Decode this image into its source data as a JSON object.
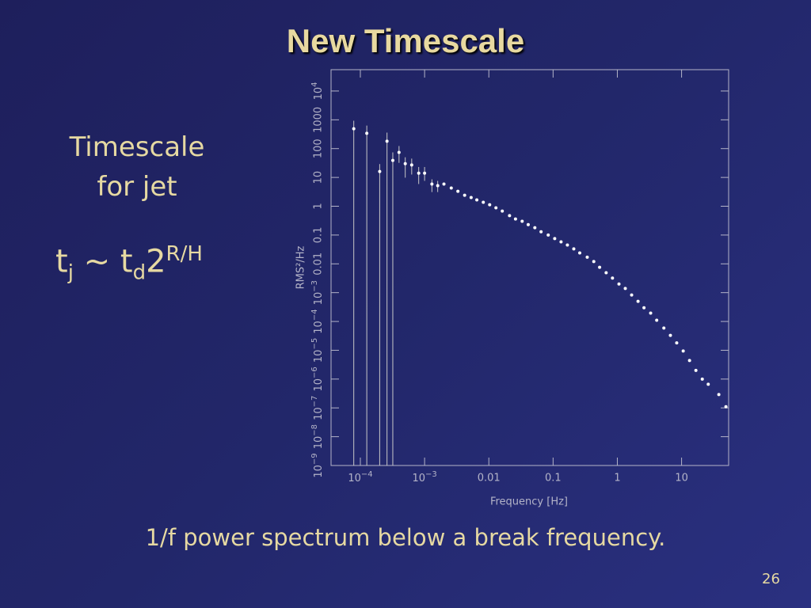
{
  "slide": {
    "title": "New Timescale",
    "side_lines": [
      "Timescale",
      "for jet"
    ],
    "formula": {
      "t1": "t",
      "sub1": "j",
      "mid": " ~ t",
      "sub2": "d",
      "base": "2",
      "sup": "R/H"
    },
    "caption": "1/f power spectrum below a break frequency.",
    "page_number": "26"
  },
  "chart_data": {
    "type": "scatter",
    "x_label": "Frequency [Hz]",
    "y_label": "RMS²/Hz",
    "xscale": "log",
    "yscale": "log",
    "xlim": [
      3.5e-05,
      54
    ],
    "ylim": [
      1e-09,
      55000
    ],
    "xticks": [
      {
        "value": 0.0001,
        "label": "10",
        "exponent": "−4"
      },
      {
        "value": 0.001,
        "label": "10",
        "exponent": "−3"
      },
      0.01,
      0.1,
      1,
      10
    ],
    "yticks": [
      {
        "value": 1e-09,
        "label": "10",
        "exponent": "−9"
      },
      {
        "value": 1e-08,
        "label": "10",
        "exponent": "−8"
      },
      {
        "value": 1e-07,
        "label": "10",
        "exponent": "−7"
      },
      {
        "value": 1e-06,
        "label": "10",
        "exponent": "−6"
      },
      {
        "value": 1e-05,
        "label": "10",
        "exponent": "−5"
      },
      {
        "value": 0.0001,
        "label": "10",
        "exponent": "−4"
      },
      {
        "value": 0.001,
        "label": "10",
        "exponent": "−3"
      },
      0.01,
      0.1,
      1,
      10,
      100,
      1000,
      {
        "value": 10000,
        "label": "10",
        "exponent": "4"
      }
    ],
    "color": "#ffffff",
    "errorbar_color": "#c8c8c8",
    "axis_color": "#b4b4c8",
    "x": [
      7.9e-05,
      0.000126,
      0.0002,
      0.00026,
      0.00032,
      0.0004,
      0.0005,
      0.00063,
      0.00081,
      0.001,
      0.0013,
      0.0016,
      0.002,
      0.0026,
      0.0033,
      0.0042,
      0.0053,
      0.0065,
      0.0082,
      0.0103,
      0.0129,
      0.0162,
      0.021,
      0.026,
      0.033,
      0.041,
      0.052,
      0.065,
      0.084,
      0.106,
      0.133,
      0.167,
      0.21,
      0.26,
      0.34,
      0.43,
      0.53,
      0.67,
      0.84,
      1.06,
      1.33,
      1.67,
      2.1,
      2.6,
      3.3,
      4.1,
      5.3,
      6.7,
      8.4,
      10.6,
      13.3,
      16.7,
      21,
      26,
      38,
      49
    ],
    "values": [
      490,
      340,
      16,
      180,
      39,
      74,
      30,
      27,
      14,
      14,
      5.9,
      5.2,
      5.9,
      4.3,
      3.3,
      2.4,
      2.0,
      1.66,
      1.37,
      1.13,
      0.88,
      0.68,
      0.47,
      0.36,
      0.3,
      0.23,
      0.18,
      0.13,
      0.1,
      0.075,
      0.058,
      0.045,
      0.033,
      0.024,
      0.017,
      0.012,
      0.0076,
      0.0049,
      0.0032,
      0.002,
      0.0014,
      0.00083,
      0.0005,
      0.0003,
      0.000195,
      0.00011,
      5.9e-05,
      3.3e-05,
      1.8e-05,
      9.4e-06,
      4.4e-06,
      2e-06,
      1e-06,
      6.6e-07,
      2.9e-07,
      1.1e-07
    ],
    "y_low": [
      0,
      0,
      0,
      0,
      0,
      32,
      9.8,
      12.6,
      5.9,
      7.6,
      3.1,
      3.1,
      null,
      null,
      null,
      null,
      null,
      null,
      null,
      null,
      null,
      null,
      null,
      null,
      null,
      null,
      null,
      null,
      null,
      null,
      null,
      null,
      null,
      null,
      null,
      null,
      null,
      null,
      null,
      null,
      null,
      null,
      null,
      null,
      null,
      null,
      null,
      null,
      null,
      null,
      null,
      null,
      null,
      null,
      null,
      null
    ],
    "y_high": [
      930,
      630,
      29,
      360,
      74,
      123,
      50,
      45,
      23,
      23,
      8.6,
      7.6,
      null,
      null,
      null,
      null,
      null,
      null,
      null,
      null,
      null,
      null,
      null,
      null,
      null,
      null,
      null,
      null,
      null,
      null,
      null,
      null,
      null,
      null,
      null,
      null,
      null,
      null,
      null,
      null,
      null,
      null,
      null,
      null,
      null,
      null,
      null,
      null,
      null,
      null,
      null,
      null,
      null,
      null,
      null,
      null
    ]
  }
}
